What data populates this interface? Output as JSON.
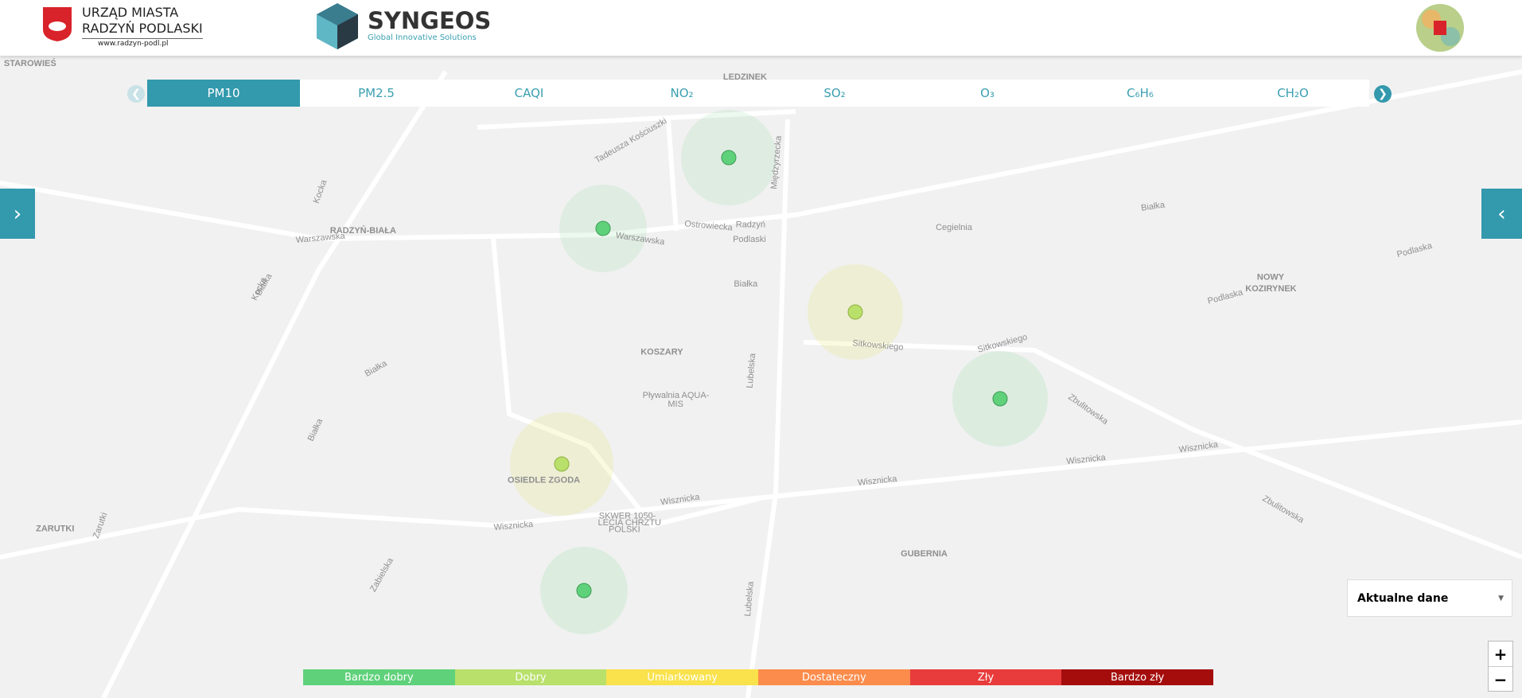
{
  "header": {
    "city_line1": "URZĄD MIASTA",
    "city_line2": "RADZYŃ PODLASKI",
    "city_url": "www.radzyn-podl.pl",
    "brand": "SYNGEOS",
    "brand_tagline": "Global Innovative Solutions"
  },
  "tabs": {
    "items": [
      "PM10",
      "PM2.5",
      "CAQI",
      "NO₂",
      "SO₂",
      "O₃",
      "C₆H₆",
      "CH₂O"
    ],
    "active": 0
  },
  "map": {
    "labels": [
      "STAROWIEŚ",
      "RADZYŃ-BIAŁA",
      "Warszawska",
      "Warszawska",
      "Radzyń",
      "Podlaski",
      "Ostrowiecka",
      "Tadeusza Kościuszki",
      "Międzyrzecka",
      "Cegielnia",
      "Białka",
      "Białka",
      "Białka",
      "Białka",
      "Białka",
      "KOSZARY",
      "Pływalnia AQUA-",
      "MIS",
      "OSIEDLE ZGODA",
      "SKWER 1050-",
      "LECIA CHRZTU",
      "POLSKI",
      "Wisznicka",
      "Wisznicka",
      "Wisznicka",
      "Wisznicka",
      "Wisznicka",
      "ZARUTKI",
      "GUBERNIA",
      "NOWY",
      "KOZIRYNEK",
      "Sitkowskiego",
      "Sitkowskiego",
      "Lubelska",
      "Lubelska",
      "Zbulitowska",
      "Zbulitowska",
      "Podlaska",
      "Podlaska",
      "Kocka",
      "Kocka",
      "Zarutki",
      "Zabielska",
      "LEDZINEK"
    ]
  },
  "legend": {
    "items": [
      {
        "label": "Bardzo dobry",
        "color": "#5fd17a"
      },
      {
        "label": "Dobry",
        "color": "#b8e06a"
      },
      {
        "label": "Umiarkowany",
        "color": "#f9e24b"
      },
      {
        "label": "Dostateczny",
        "color": "#fb8c4c"
      },
      {
        "label": "Zły",
        "color": "#e83b3b"
      },
      {
        "label": "Bardzo zły",
        "color": "#a50d0d"
      }
    ]
  },
  "dropdown": {
    "label": "Aktualne dane"
  },
  "zoom": {
    "in": "+",
    "out": "−"
  }
}
